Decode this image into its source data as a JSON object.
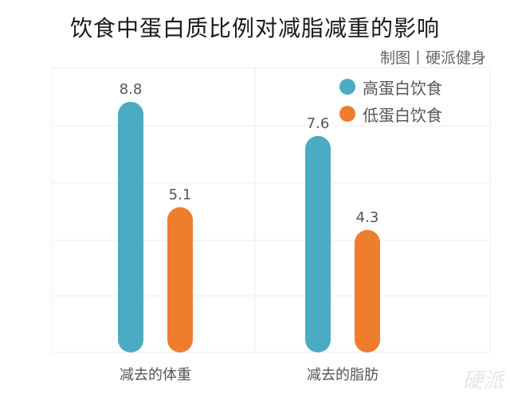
{
  "chart_data": {
    "type": "bar",
    "title": "饮食中蛋白质比例对减脂减重的影响",
    "subtitle": "制图丨硬派健身",
    "categories": [
      "减去的体重",
      "减去的脂肪"
    ],
    "series": [
      {
        "name": "高蛋白饮食",
        "values": [
          8.8,
          7.6
        ],
        "color": "#4aabc2"
      },
      {
        "name": "低蛋白饮食",
        "values": [
          5.1,
          4.3
        ],
        "color": "#ee7d2e"
      }
    ],
    "ylim": [
      0,
      10
    ],
    "grid": true,
    "legend_position": "top-right"
  },
  "watermark": "硬派"
}
